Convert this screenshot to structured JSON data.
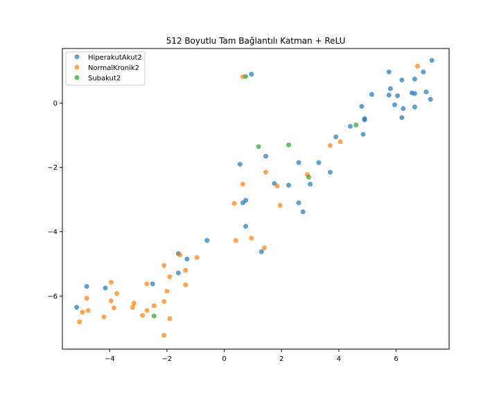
{
  "chart_data": {
    "type": "scatter",
    "title": "512 Boyutlu Tam Bağlantılı Katman + ReLU",
    "xlabel": "",
    "ylabel": "",
    "xlim": [
      -5.65,
      7.85
    ],
    "ylim": [
      -7.65,
      1.7
    ],
    "xticks": [
      -4,
      -2,
      0,
      2,
      4,
      6
    ],
    "yticks": [
      -6,
      -4,
      -2,
      0
    ],
    "tick_labels_x": [
      "−4",
      "−2",
      "0",
      "2",
      "4",
      "6"
    ],
    "tick_labels_y": [
      "−6",
      "−4",
      "−2",
      "0"
    ],
    "grid": false,
    "legend_position": "top-left",
    "series": [
      {
        "name": "HiperakutAkut2",
        "color": "#1f77b4",
        "points": [
          [
            7.25,
            1.33
          ],
          [
            5.75,
            0.97
          ],
          [
            6.95,
            0.97
          ],
          [
            0.95,
            0.9
          ],
          [
            6.65,
            0.75
          ],
          [
            6.2,
            0.72
          ],
          [
            5.8,
            0.45
          ],
          [
            7.05,
            0.35
          ],
          [
            6.55,
            0.32
          ],
          [
            6.65,
            0.3
          ],
          [
            5.15,
            0.27
          ],
          [
            5.75,
            0.25
          ],
          [
            6.05,
            0.23
          ],
          [
            7.2,
            0.12
          ],
          [
            5.95,
            -0.05
          ],
          [
            4.8,
            -0.1
          ],
          [
            6.65,
            -0.12
          ],
          [
            6.25,
            -0.17
          ],
          [
            4.9,
            -0.48
          ],
          [
            4.9,
            -0.52
          ],
          [
            6.2,
            -0.45
          ],
          [
            4.4,
            -0.72
          ],
          [
            4.85,
            -0.97
          ],
          [
            3.9,
            -1.05
          ],
          [
            1.45,
            -1.65
          ],
          [
            0.55,
            -1.9
          ],
          [
            2.6,
            -1.85
          ],
          [
            3.3,
            -1.85
          ],
          [
            3.7,
            -2.15
          ],
          [
            1.75,
            -2.5
          ],
          [
            2.25,
            -2.55
          ],
          [
            3.0,
            -2.52
          ],
          [
            2.6,
            -3.1
          ],
          [
            0.75,
            -3.02
          ],
          [
            0.65,
            -3.1
          ],
          [
            2.75,
            -3.38
          ],
          [
            0.75,
            -3.83
          ],
          [
            -0.6,
            -4.27
          ],
          [
            1.3,
            -4.62
          ],
          [
            -1.6,
            -4.68
          ],
          [
            -1.3,
            -4.85
          ],
          [
            -1.6,
            -5.28
          ],
          [
            -2.5,
            -5.62
          ],
          [
            -4.8,
            -5.7
          ],
          [
            -4.15,
            -5.75
          ],
          [
            -5.15,
            -6.35
          ]
        ]
      },
      {
        "name": "NormalKronik2",
        "color": "#ff7f0e",
        "points": [
          [
            6.75,
            1.15
          ],
          [
            0.65,
            0.82
          ],
          [
            4.05,
            -1.2
          ],
          [
            3.7,
            -1.32
          ],
          [
            1.45,
            -2.15
          ],
          [
            2.9,
            -2.22
          ],
          [
            0.65,
            -2.52
          ],
          [
            1.85,
            -2.58
          ],
          [
            0.35,
            -3.12
          ],
          [
            1.95,
            -3.18
          ],
          [
            0.95,
            -4.2
          ],
          [
            0.4,
            -4.27
          ],
          [
            1.4,
            -4.5
          ],
          [
            -1.55,
            -4.72
          ],
          [
            -0.95,
            -4.8
          ],
          [
            -2.1,
            -5.05
          ],
          [
            -1.35,
            -5.2
          ],
          [
            -1.9,
            -5.4
          ],
          [
            -3.95,
            -5.57
          ],
          [
            -2.7,
            -5.62
          ],
          [
            -1.35,
            -5.65
          ],
          [
            -3.75,
            -5.92
          ],
          [
            -2.0,
            -5.85
          ],
          [
            -4.8,
            -6.07
          ],
          [
            -3.95,
            -6.15
          ],
          [
            -2.1,
            -6.17
          ],
          [
            -3.15,
            -6.22
          ],
          [
            -3.2,
            -6.35
          ],
          [
            -2.45,
            -6.3
          ],
          [
            -3.85,
            -6.37
          ],
          [
            -4.75,
            -6.45
          ],
          [
            -4.95,
            -6.5
          ],
          [
            -2.7,
            -6.45
          ],
          [
            -2.85,
            -6.6
          ],
          [
            -4.2,
            -6.65
          ],
          [
            -1.9,
            -6.7
          ],
          [
            -5.05,
            -6.8
          ],
          [
            -2.1,
            -7.22
          ]
        ]
      },
      {
        "name": "Subakut2",
        "color": "#2ca02c",
        "points": [
          [
            0.75,
            0.83
          ],
          [
            4.6,
            -0.68
          ],
          [
            1.2,
            -1.35
          ],
          [
            2.25,
            -1.3
          ],
          [
            2.95,
            -2.3
          ],
          [
            -2.45,
            -6.62
          ]
        ]
      }
    ]
  }
}
